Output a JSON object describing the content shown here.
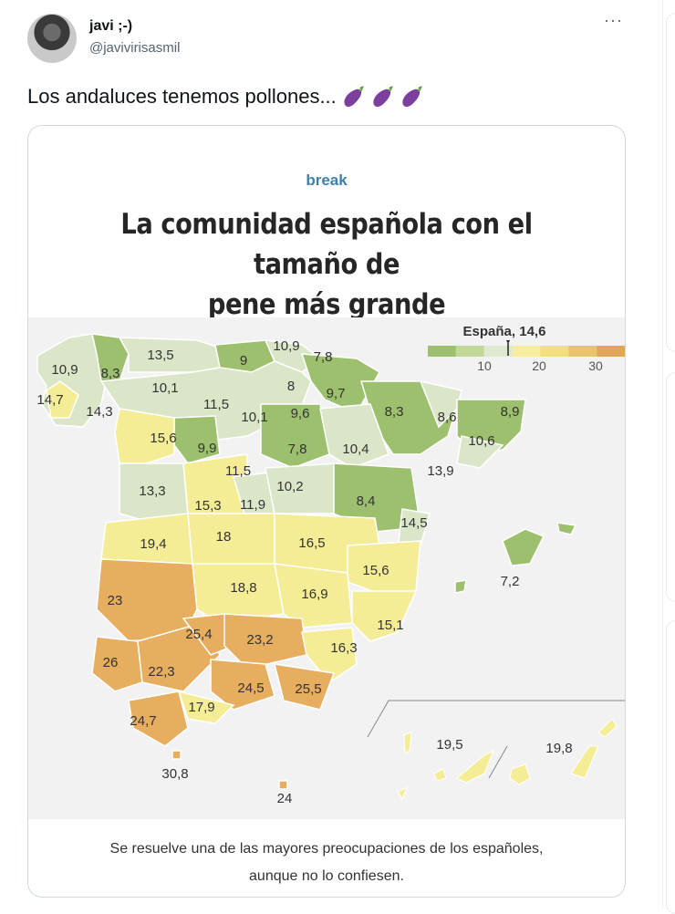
{
  "tweet": {
    "author_name": "javi ;-)",
    "author_handle": "@javivirisasmil",
    "more_icon": "more-icon",
    "text": "Los andaluces tenemos pollones...",
    "emoji": [
      "eggplant-icon",
      "eggplant-icon",
      "eggplant-icon"
    ]
  },
  "card": {
    "brand": "break",
    "headline_line1": "La comunidad española con el tamaño de",
    "headline_line2": "pene más grande",
    "caption_line1": "Se resuelve una de las mayores preocupaciones de los españoles,",
    "caption_line2": "aunque no lo confiesen."
  },
  "legend": {
    "label": "España, 14,6",
    "ticks": [
      "10",
      "20",
      "30"
    ],
    "colors": [
      "#9cc06d",
      "#c2d898",
      "#dfe9cf",
      "#f6ee9e",
      "#f2df7e",
      "#ebc36a",
      "#e2a55a"
    ]
  },
  "colors": {
    "green": "#9cc06d",
    "lightgreen": "#dbe6c8",
    "yellow": "#f5ec96",
    "orange": "#e6ae5e",
    "brand": "#3f7fa8"
  },
  "map": {
    "values": [
      "10,9",
      "8,3",
      "13,5",
      "9",
      "10,9",
      "7,8",
      "14,7",
      "14,3",
      "10,1",
      "11,5",
      "8",
      "9,7",
      "10,1",
      "9,6",
      "8,3",
      "8,6",
      "8,9",
      "15,6",
      "9,9",
      "7,8",
      "10,4",
      "10,6",
      "11,5",
      "13,9",
      "13,3",
      "15,3",
      "11,9",
      "10,2",
      "8,4",
      "14,5",
      "19,4",
      "18",
      "16,5",
      "15,6",
      "7,2",
      "23",
      "18,8",
      "16,9",
      "15,1",
      "25,4",
      "23,2",
      "16,3",
      "26",
      "22,3",
      "24,5",
      "25,5",
      "17,9",
      "24,7",
      "30,8",
      "24",
      "19,5",
      "19,8"
    ]
  }
}
